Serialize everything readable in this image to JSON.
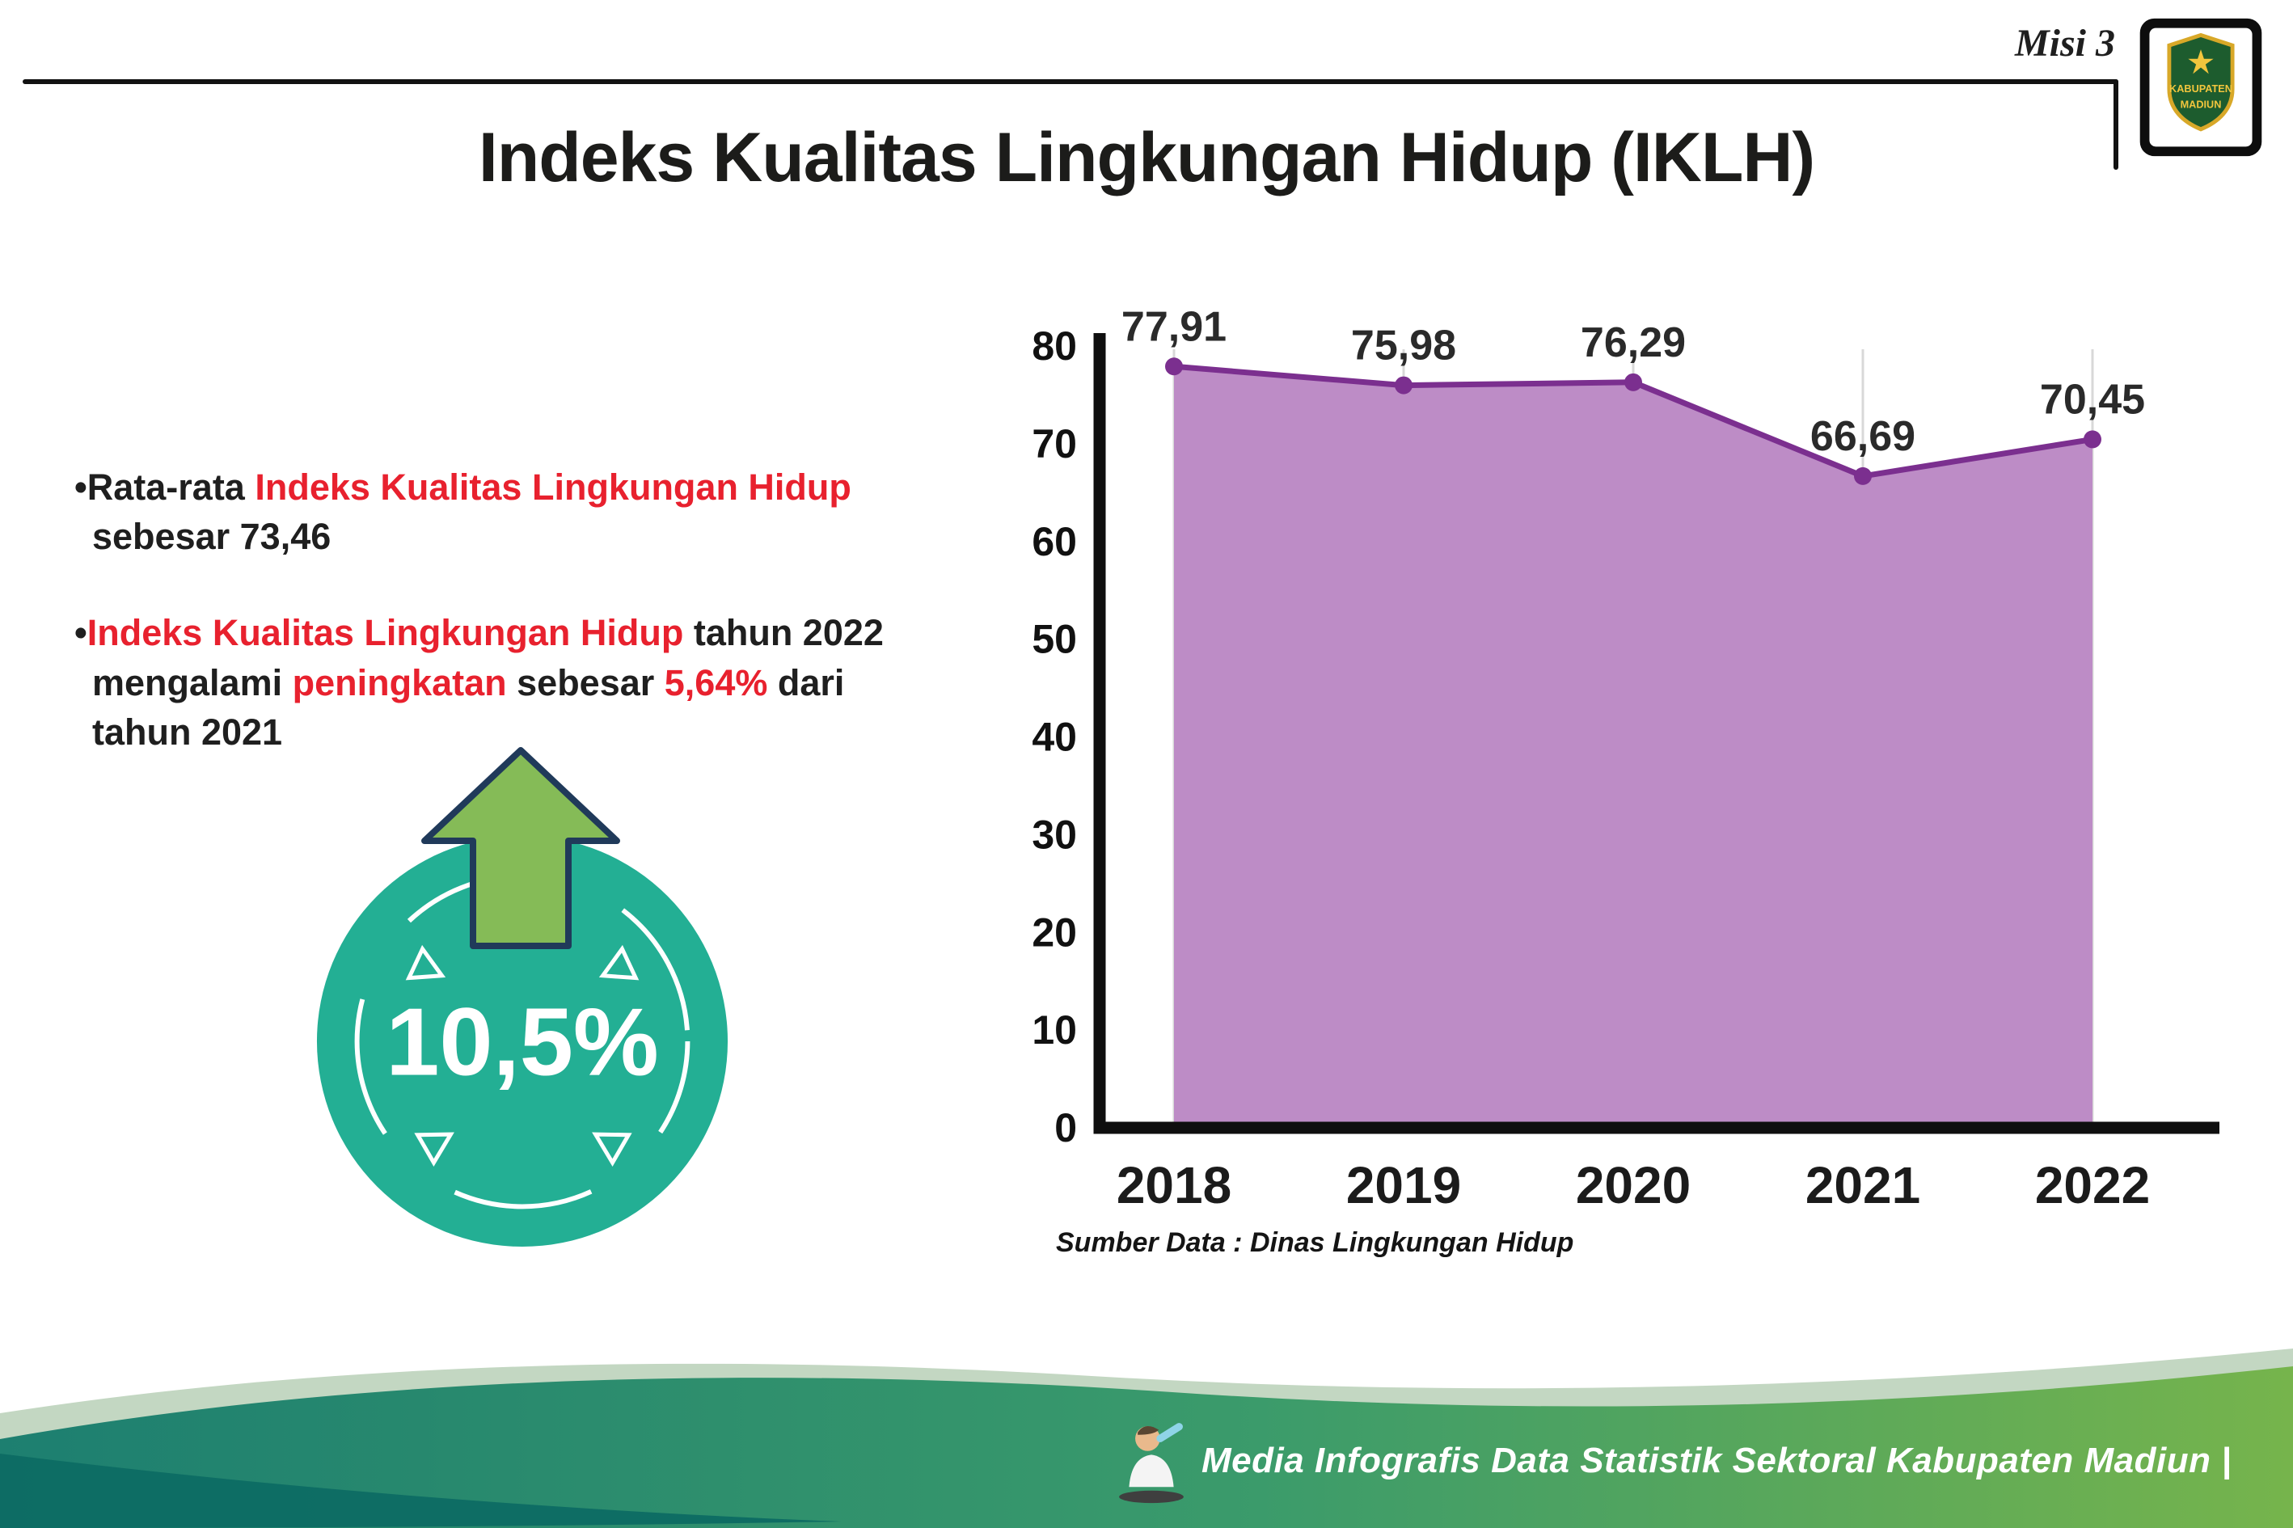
{
  "header": {
    "misi": "Misi 3",
    "title": "Indeks Kualitas Lingkungan Hidup (IKLH)",
    "logo": {
      "top_text": "KABUPATEN",
      "bottom_text": "MADIUN"
    }
  },
  "bullets": {
    "b1": [
      {
        "t": "•Rata-rata ",
        "c": "dark"
      },
      {
        "t": "Indeks Kualitas Lingkungan Hidup",
        "c": "red"
      },
      {
        "t": " sebesar 73,46",
        "c": "dark"
      }
    ],
    "b2": [
      {
        "t": "•",
        "c": "dark"
      },
      {
        "t": "Indeks Kualitas Lingkungan Hidup",
        "c": "red"
      },
      {
        "t": " tahun 2022 mengalami ",
        "c": "dark"
      },
      {
        "t": "peningkatan",
        "c": "red"
      },
      {
        "t": " sebesar ",
        "c": "dark"
      },
      {
        "t": "5,64%",
        "c": "red"
      },
      {
        "t": " dari tahun 2021",
        "c": "dark"
      }
    ]
  },
  "badge": {
    "value": "10,5%"
  },
  "chart_data": {
    "type": "area",
    "categories": [
      "2018",
      "2019",
      "2020",
      "2021",
      "2022"
    ],
    "series": [
      {
        "name": "IKLH",
        "values": [
          77.91,
          75.98,
          76.29,
          66.69,
          70.45
        ]
      }
    ],
    "value_labels": [
      "77,91",
      "75,98",
      "76,29",
      "66,69",
      "70,45"
    ],
    "title": "Indeks Kualitas Lingkungan Hidup (IKLH)",
    "xlabel": "",
    "ylabel": "",
    "ylim": [
      0,
      80
    ],
    "ytick_step": 10,
    "grid": "vertical-light",
    "legend": "none",
    "fill_color": "#bd8cc6",
    "line_color": "#7b2f8f"
  },
  "source_note": "Sumber Data : Dinas Lingkungan Hidup",
  "footer": {
    "text": "Media Infografis Data Statistik Sektoral Kabupaten Madiun |"
  },
  "colors": {
    "accent_red": "#e8212e",
    "badge_teal": "#23af94",
    "arrow_green": "#85bb57",
    "chart_fill": "#bd8cc6",
    "chart_line": "#7b2f8f",
    "footer_teal": "#1d7f70",
    "footer_green": "#76b44c"
  }
}
